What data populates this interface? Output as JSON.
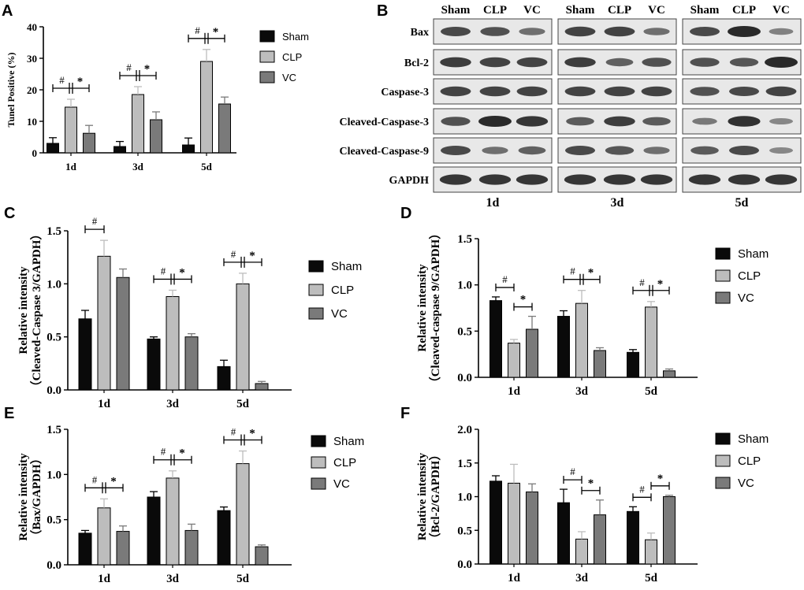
{
  "colors": {
    "sham": "#0a0a0a",
    "clp": "#bdbdbd",
    "vc": "#7a7a7a",
    "axis": "#000000",
    "blot_bg": "#e8e8e8",
    "band": "#2a2a2a"
  },
  "western_blot": {
    "panel_label": "B",
    "lane_labels": [
      "Sham",
      "CLP",
      "VC"
    ],
    "proteins": [
      "Bax",
      "Bcl-2",
      "Caspase-3",
      "Cleaved-Caspase-3",
      "Cleaved-Caspase-9",
      "GAPDH"
    ],
    "timepoints": [
      "1d",
      "3d",
      "5d"
    ],
    "band_intensity": [
      [
        [
          0.75,
          0.7,
          0.45
        ],
        [
          0.8,
          0.8,
          0.45
        ],
        [
          0.75,
          1.0,
          0.3
        ]
      ],
      [
        [
          0.85,
          0.8,
          0.8
        ],
        [
          0.85,
          0.55,
          0.7
        ],
        [
          0.7,
          0.65,
          1.0
        ]
      ],
      [
        [
          0.8,
          0.8,
          0.8
        ],
        [
          0.8,
          0.8,
          0.8
        ],
        [
          0.7,
          0.75,
          0.8
        ]
      ],
      [
        [
          0.7,
          1.0,
          0.9
        ],
        [
          0.6,
          0.85,
          0.6
        ],
        [
          0.35,
          0.95,
          0.25
        ]
      ],
      [
        [
          0.75,
          0.45,
          0.55
        ],
        [
          0.75,
          0.65,
          0.45
        ],
        [
          0.6,
          0.75,
          0.25
        ]
      ],
      [
        [
          0.9,
          0.9,
          0.9
        ],
        [
          0.9,
          0.9,
          0.9
        ],
        [
          0.9,
          0.9,
          0.9
        ]
      ]
    ]
  },
  "chart_data": [
    {
      "id": "A",
      "panel_label": "A",
      "type": "bar",
      "ylabel": "Tunel Positive (%)",
      "ylim": [
        0,
        40
      ],
      "yticks": [
        "0",
        "10",
        "20",
        "30",
        "40"
      ],
      "categories": [
        "1d",
        "3d",
        "5d"
      ],
      "series": [
        {
          "name": "Sham",
          "values": [
            3,
            2,
            2.5
          ],
          "errors": [
            1.8,
            1.6,
            2.2
          ]
        },
        {
          "name": "CLP",
          "values": [
            14.5,
            18.5,
            29
          ],
          "errors": [
            2.5,
            2.5,
            3.8
          ]
        },
        {
          "name": "VC",
          "values": [
            6.2,
            10.5,
            15.5
          ],
          "errors": [
            2.5,
            2.5,
            2.2
          ]
        }
      ],
      "annotations": [
        {
          "group": 0,
          "marks": [
            "#",
            "*"
          ]
        },
        {
          "group": 1,
          "marks": [
            "#",
            "*"
          ]
        },
        {
          "group": 2,
          "marks": [
            "#",
            "*"
          ]
        }
      ]
    },
    {
      "id": "C",
      "panel_label": "C",
      "type": "bar",
      "ylabel": "Relative intensity",
      "ylabel2": "（Cleaved-Caspase 3/GAPDH）",
      "ylim": [
        0,
        1.5
      ],
      "yticks": [
        "0.0",
        "0.5",
        "1.0",
        "1.5"
      ],
      "categories": [
        "1d",
        "3d",
        "5d"
      ],
      "series": [
        {
          "name": "Sham",
          "values": [
            0.67,
            0.48,
            0.22
          ],
          "errors": [
            0.08,
            0.02,
            0.06
          ]
        },
        {
          "name": "CLP",
          "values": [
            1.26,
            0.88,
            1.0
          ],
          "errors": [
            0.15,
            0.06,
            0.1
          ]
        },
        {
          "name": "VC",
          "values": [
            1.06,
            0.5,
            0.06
          ],
          "errors": [
            0.08,
            0.03,
            0.02
          ]
        }
      ],
      "annotations": [
        {
          "group": 0,
          "marks": [
            "#"
          ]
        },
        {
          "group": 1,
          "marks": [
            "#",
            "*"
          ]
        },
        {
          "group": 2,
          "marks": [
            "#",
            "*"
          ]
        }
      ]
    },
    {
      "id": "D",
      "panel_label": "D",
      "type": "bar",
      "ylabel": "Relative intensity",
      "ylabel2": "（Cleaved-caspase 9/GAPDH）",
      "ylim": [
        0,
        1.5
      ],
      "yticks": [
        "0.0",
        "0.5",
        "1.0",
        "1.5"
      ],
      "categories": [
        "1d",
        "3d",
        "5d"
      ],
      "series": [
        {
          "name": "Sham",
          "values": [
            0.83,
            0.66,
            0.27
          ],
          "errors": [
            0.04,
            0.06,
            0.03
          ]
        },
        {
          "name": "CLP",
          "values": [
            0.37,
            0.8,
            0.76
          ],
          "errors": [
            0.04,
            0.14,
            0.06
          ]
        },
        {
          "name": "VC",
          "values": [
            0.52,
            0.29,
            0.07
          ],
          "errors": [
            0.14,
            0.03,
            0.02
          ]
        }
      ],
      "annotations": [
        {
          "group": 0,
          "marks": [
            "#",
            "*"
          ],
          "split": true
        },
        {
          "group": 1,
          "marks": [
            "#",
            "*"
          ]
        },
        {
          "group": 2,
          "marks": [
            "#",
            "*"
          ]
        }
      ]
    },
    {
      "id": "E",
      "panel_label": "E",
      "type": "bar",
      "ylabel": "Relative intensity",
      "ylabel2": "（Bax/GAPDH）",
      "ylim": [
        0,
        1.5
      ],
      "yticks": [
        "0.0",
        "0.5",
        "1.0",
        "1.5"
      ],
      "categories": [
        "1d",
        "3d",
        "5d"
      ],
      "series": [
        {
          "name": "Sham",
          "values": [
            0.35,
            0.75,
            0.6
          ],
          "errors": [
            0.03,
            0.06,
            0.04
          ]
        },
        {
          "name": "CLP",
          "values": [
            0.63,
            0.96,
            1.12
          ],
          "errors": [
            0.1,
            0.08,
            0.14
          ]
        },
        {
          "name": "VC",
          "values": [
            0.37,
            0.38,
            0.2
          ],
          "errors": [
            0.06,
            0.07,
            0.02
          ]
        }
      ],
      "annotations": [
        {
          "group": 0,
          "marks": [
            "#",
            "*"
          ]
        },
        {
          "group": 1,
          "marks": [
            "#",
            "*"
          ]
        },
        {
          "group": 2,
          "marks": [
            "#",
            "*"
          ]
        }
      ]
    },
    {
      "id": "F",
      "panel_label": "F",
      "type": "bar",
      "ylabel": "Relative intensity",
      "ylabel2": "（Bcl-2/GAPDH）",
      "ylim": [
        0,
        2.0
      ],
      "yticks": [
        "0.0",
        "0.5",
        "1.0",
        "1.5",
        "2.0"
      ],
      "categories": [
        "1d",
        "3d",
        "5d"
      ],
      "series": [
        {
          "name": "Sham",
          "values": [
            1.23,
            0.91,
            0.78
          ],
          "errors": [
            0.08,
            0.2,
            0.07
          ]
        },
        {
          "name": "CLP",
          "values": [
            1.2,
            0.37,
            0.36
          ],
          "errors": [
            0.28,
            0.11,
            0.1
          ]
        },
        {
          "name": "VC",
          "values": [
            1.07,
            0.73,
            1.0
          ],
          "errors": [
            0.12,
            0.22,
            0.02
          ]
        }
      ],
      "annotations": [
        {
          "group": 1,
          "marks": [
            "#",
            "*"
          ],
          "split": true
        },
        {
          "group": 2,
          "marks": [
            "#",
            "*"
          ],
          "split": true
        }
      ]
    }
  ]
}
